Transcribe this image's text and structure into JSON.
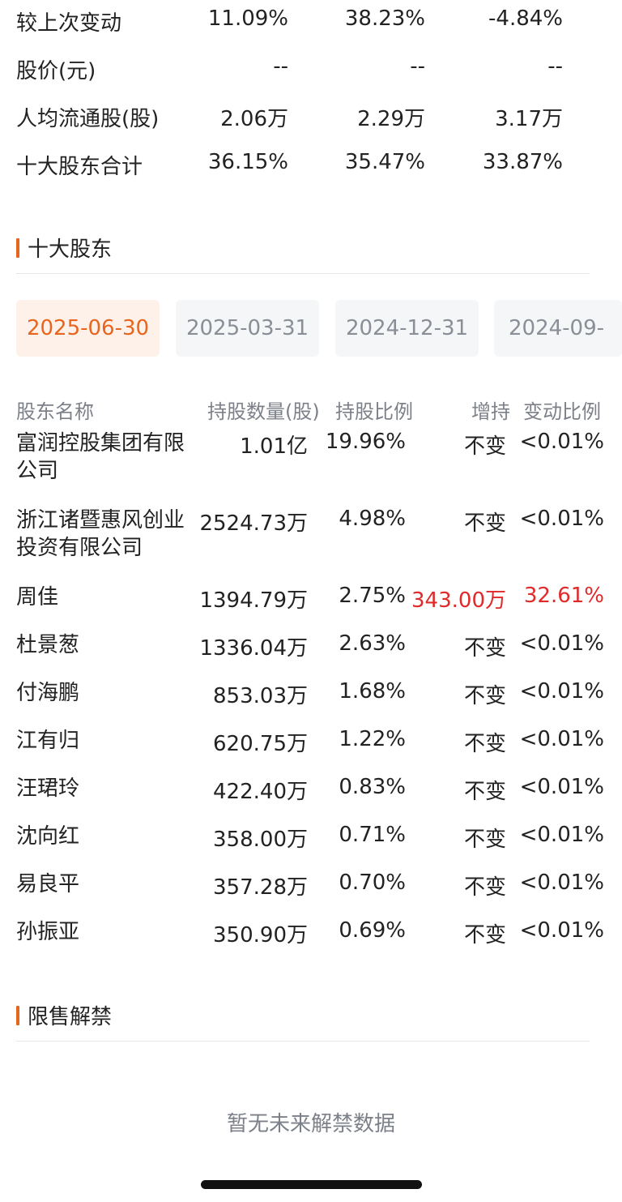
{
  "summary": {
    "rows": [
      {
        "label": "较上次变动",
        "values": [
          "11.09%",
          "38.23%",
          "-4.84%"
        ]
      },
      {
        "label": "股价(元)",
        "values": [
          "--",
          "--",
          "--"
        ]
      },
      {
        "label": "人均流通股(股)",
        "values": [
          "2.06万",
          "2.29万",
          "3.17万"
        ]
      },
      {
        "label": "十大股东合计",
        "values": [
          "36.15%",
          "35.47%",
          "33.87%"
        ]
      }
    ]
  },
  "top_holders": {
    "title": "十大股东",
    "dates": [
      "2025-06-30",
      "2025-03-31",
      "2024-12-31",
      "2024-09-"
    ],
    "selected_date": "2025-06-30",
    "headers": [
      "股东名称",
      "持股数量(股)",
      "持股比例",
      "增持",
      "变动比例"
    ],
    "rows": [
      {
        "name": "富润控股集团有限公司",
        "shares": "1.01亿",
        "ratio": "19.96%",
        "change": "不变",
        "change_ratio": "<0.01%"
      },
      {
        "name": "浙江诸暨惠风创业投资有限公司",
        "shares": "2524.73万",
        "ratio": "4.98%",
        "change": "不变",
        "change_ratio": "<0.01%"
      },
      {
        "name": "周佳",
        "shares": "1394.79万",
        "ratio": "2.75%",
        "change": "343.00万",
        "change_ratio": "32.61%",
        "highlight": true
      },
      {
        "name": "杜景葱",
        "shares": "1336.04万",
        "ratio": "2.63%",
        "change": "不变",
        "change_ratio": "<0.01%"
      },
      {
        "name": "付海鹏",
        "shares": "853.03万",
        "ratio": "1.68%",
        "change": "不变",
        "change_ratio": "<0.01%"
      },
      {
        "name": "江有归",
        "shares": "620.75万",
        "ratio": "1.22%",
        "change": "不变",
        "change_ratio": "<0.01%"
      },
      {
        "name": "汪珺玲",
        "shares": "422.40万",
        "ratio": "0.83%",
        "change": "不变",
        "change_ratio": "<0.01%"
      },
      {
        "name": "沈向红",
        "shares": "358.00万",
        "ratio": "0.71%",
        "change": "不变",
        "change_ratio": "<0.01%"
      },
      {
        "name": "易良平",
        "shares": "357.28万",
        "ratio": "0.70%",
        "change": "不变",
        "change_ratio": "<0.01%"
      },
      {
        "name": "孙振亚",
        "shares": "350.90万",
        "ratio": "0.69%",
        "change": "不变",
        "change_ratio": "<0.01%"
      }
    ]
  },
  "lockup": {
    "title": "限售解禁",
    "empty_message": "暂无未来解禁数据"
  },
  "colors": {
    "accent": "#e8651e",
    "increase": "#e02a2a"
  }
}
